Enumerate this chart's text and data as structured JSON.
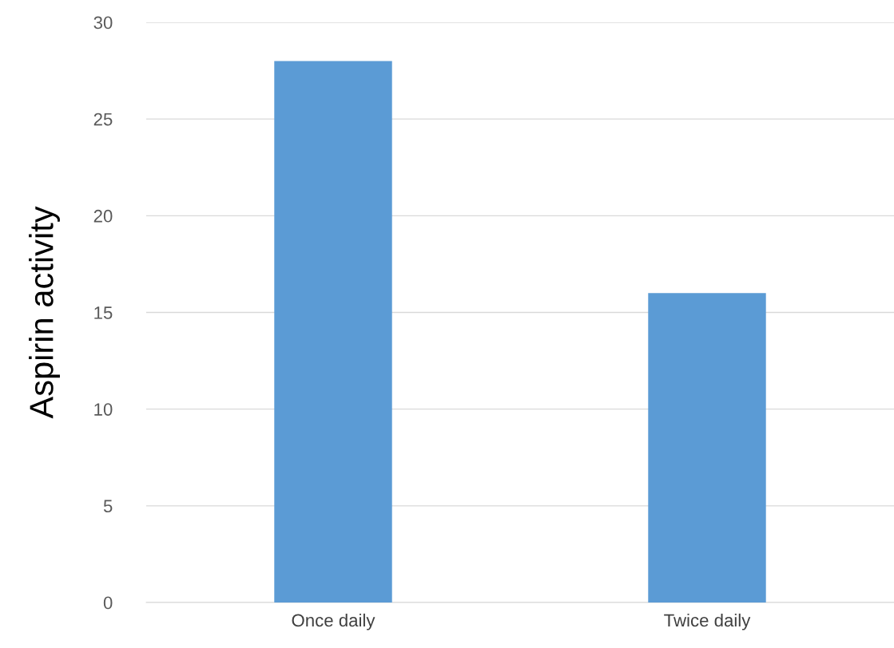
{
  "chart_data": {
    "type": "bar",
    "ylabel": "Aspirin activity",
    "categories": [
      "Once daily",
      "Twice daily"
    ],
    "values": [
      28,
      16
    ],
    "color": "#5b9bd5",
    "ylim": [
      0,
      30
    ],
    "yticks": [
      0,
      5,
      10,
      15,
      20,
      25,
      30
    ],
    "grid": "y"
  }
}
